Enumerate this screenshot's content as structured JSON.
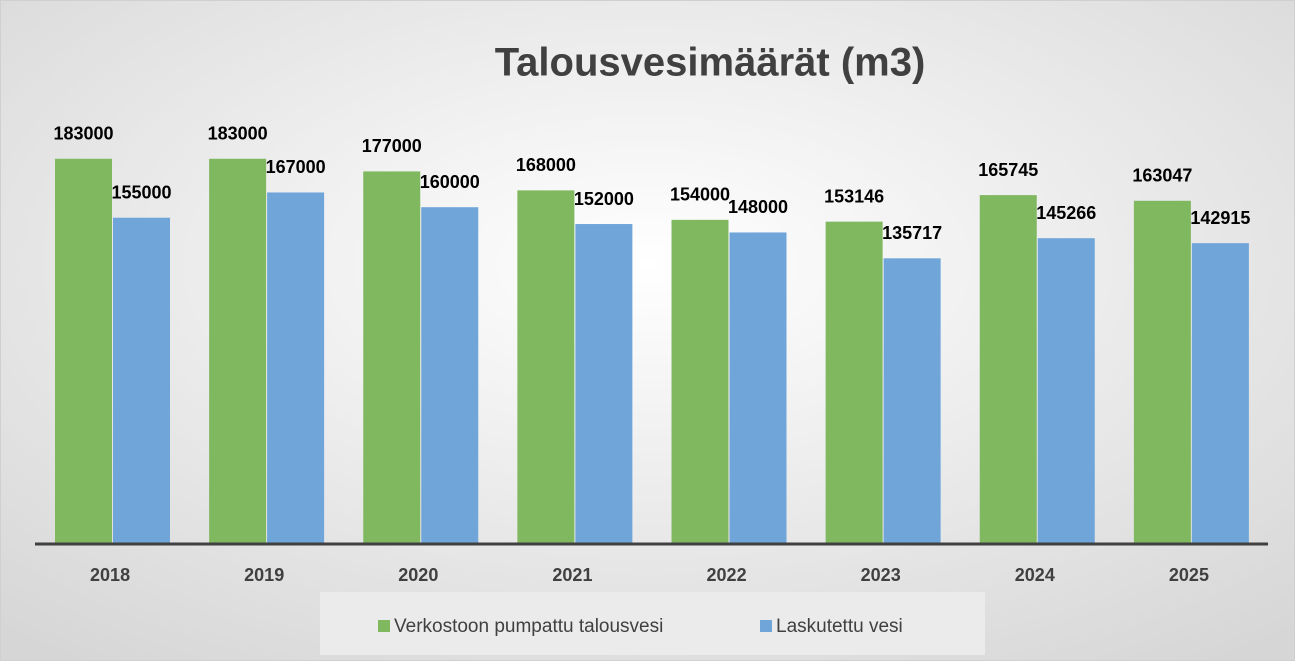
{
  "chart_data": {
    "type": "bar",
    "title": "Talousvesimäärät (m3)",
    "categories": [
      "2018",
      "2019",
      "2020",
      "2021",
      "2022",
      "2023",
      "2024",
      "2025"
    ],
    "series": [
      {
        "name": "Verkostoon pumpattu talousvesi",
        "color": "#80b860",
        "values": [
          183000,
          183000,
          177000,
          168000,
          154000,
          153146,
          165745,
          163047
        ]
      },
      {
        "name": "Laskutettu vesi",
        "color": "#6fa5d8",
        "values": [
          155000,
          167000,
          160000,
          152000,
          148000,
          135717,
          145266,
          142915
        ]
      }
    ],
    "ylim": [
      0,
      200000
    ],
    "legend": "bottom"
  }
}
